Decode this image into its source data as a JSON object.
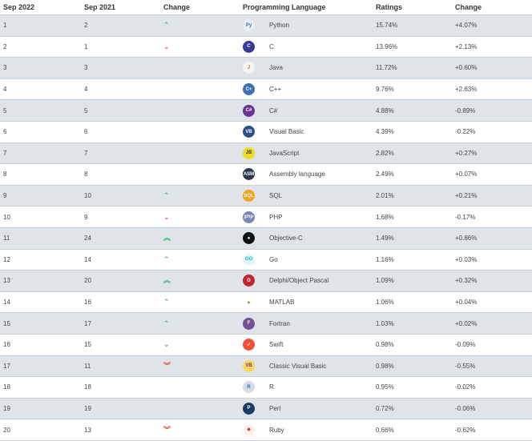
{
  "headers": {
    "sep2022": "Sep 2022",
    "sep2021": "Sep 2021",
    "change": "Change",
    "language": "Programming Language",
    "ratings": "Ratings",
    "change_pct": "Change"
  },
  "rows": [
    {
      "sep2022": "1",
      "sep2021": "2",
      "trend": "up",
      "logo": {
        "icon": "python-icon",
        "glyph": "Py",
        "bg": "#e9eef5",
        "fg": "#3572a5"
      },
      "language": "Python",
      "rating": "15.74%",
      "change": "+4.07%"
    },
    {
      "sep2022": "2",
      "sep2021": "1",
      "trend": "down",
      "logo": {
        "icon": "c-icon",
        "glyph": "C",
        "bg": "#39399a",
        "fg": "#ffffff"
      },
      "language": "C",
      "rating": "13.96%",
      "change": "+2.13%"
    },
    {
      "sep2022": "3",
      "sep2021": "3",
      "trend": "",
      "logo": {
        "icon": "java-icon",
        "glyph": "J",
        "bg": "#f4f4f4",
        "fg": "#e76f00"
      },
      "language": "Java",
      "rating": "11.72%",
      "change": "+0.60%"
    },
    {
      "sep2022": "4",
      "sep2021": "4",
      "trend": "",
      "logo": {
        "icon": "cpp-icon",
        "glyph": "C+",
        "bg": "#3f6fb5",
        "fg": "#ffffff"
      },
      "language": "C++",
      "rating": "9.76%",
      "change": "+2.63%"
    },
    {
      "sep2022": "5",
      "sep2021": "5",
      "trend": "",
      "logo": {
        "icon": "csharp-icon",
        "glyph": "C#",
        "bg": "#6a2f93",
        "fg": "#ffffff"
      },
      "language": "C#",
      "rating": "4.88%",
      "change": "-0.89%"
    },
    {
      "sep2022": "6",
      "sep2021": "6",
      "trend": "",
      "logo": {
        "icon": "visual-basic-icon",
        "glyph": "VB",
        "bg": "#2c4f8a",
        "fg": "#ffffff"
      },
      "language": "Visual Basic",
      "rating": "4.39%",
      "change": "-0.22%"
    },
    {
      "sep2022": "7",
      "sep2021": "7",
      "trend": "",
      "logo": {
        "icon": "javascript-icon",
        "glyph": "JS",
        "bg": "#f0db1f",
        "fg": "#222222"
      },
      "language": "JavaScript",
      "rating": "2.82%",
      "change": "+0.27%"
    },
    {
      "sep2022": "8",
      "sep2021": "8",
      "trend": "",
      "logo": {
        "icon": "assembly-icon",
        "glyph": "ASM",
        "bg": "#2b3a4a",
        "fg": "#ffffff"
      },
      "language": "Assembly language",
      "rating": "2.49%",
      "change": "+0.07%"
    },
    {
      "sep2022": "9",
      "sep2021": "10",
      "trend": "up",
      "logo": {
        "icon": "sql-icon",
        "glyph": "SQL",
        "bg": "#f2a31b",
        "fg": "#ffffff"
      },
      "language": "SQL",
      "rating": "2.01%",
      "change": "+0.21%"
    },
    {
      "sep2022": "10",
      "sep2021": "9",
      "trend": "down",
      "logo": {
        "icon": "php-icon",
        "glyph": "php",
        "bg": "#7a86b8",
        "fg": "#ffffff"
      },
      "language": "PHP",
      "rating": "1.68%",
      "change": "-0.17%"
    },
    {
      "sep2022": "11",
      "sep2021": "24",
      "trend": "double-up",
      "logo": {
        "icon": "apple-icon",
        "glyph": "●",
        "bg": "#111111",
        "fg": "#ffffff"
      },
      "language": "Objective-C",
      "rating": "1.49%",
      "change": "+0.86%"
    },
    {
      "sep2022": "12",
      "sep2021": "14",
      "trend": "up",
      "logo": {
        "icon": "go-icon",
        "glyph": "GO",
        "bg": "#e7f6fb",
        "fg": "#00add8"
      },
      "language": "Go",
      "rating": "1.16%",
      "change": "+0.03%"
    },
    {
      "sep2022": "13",
      "sep2021": "20",
      "trend": "double-up",
      "logo": {
        "icon": "delphi-icon",
        "glyph": "D",
        "bg": "#c1262d",
        "fg": "#ffffff"
      },
      "language": "Delphi/Object Pascal",
      "rating": "1.09%",
      "change": "+0.32%"
    },
    {
      "sep2022": "14",
      "sep2021": "16",
      "trend": "up",
      "logo": {
        "icon": "matlab-icon",
        "glyph": "▲",
        "bg": "#ffffff",
        "fg": "#e16737"
      },
      "language": "MATLAB",
      "rating": "1.06%",
      "change": "+0.04%"
    },
    {
      "sep2022": "15",
      "sep2021": "17",
      "trend": "up",
      "logo": {
        "icon": "fortran-icon",
        "glyph": "F",
        "bg": "#734f96",
        "fg": "#ffffff"
      },
      "language": "Fortran",
      "rating": "1.03%",
      "change": "+0.02%"
    },
    {
      "sep2022": "16",
      "sep2021": "15",
      "trend": "down",
      "logo": {
        "icon": "swift-icon",
        "glyph": "➶",
        "bg": "#f05138",
        "fg": "#ffffff"
      },
      "language": "Swift",
      "rating": "0.98%",
      "change": "-0.09%"
    },
    {
      "sep2022": "17",
      "sep2021": "11",
      "trend": "double-down",
      "logo": {
        "icon": "classic-visual-basic-icon",
        "glyph": "VB",
        "bg": "#ffd75e",
        "fg": "#5a3a8a"
      },
      "language": "Classic Visual Basic",
      "rating": "0.98%",
      "change": "-0.55%"
    },
    {
      "sep2022": "18",
      "sep2021": "18",
      "trend": "",
      "logo": {
        "icon": "r-icon",
        "glyph": "R",
        "bg": "#d6dce4",
        "fg": "#276dc3"
      },
      "language": "R",
      "rating": "0.95%",
      "change": "-0.02%"
    },
    {
      "sep2022": "19",
      "sep2021": "19",
      "trend": "",
      "logo": {
        "icon": "perl-icon",
        "glyph": "P",
        "bg": "#1b3c66",
        "fg": "#ffffff"
      },
      "language": "Perl",
      "rating": "0.72%",
      "change": "-0.06%"
    },
    {
      "sep2022": "20",
      "sep2021": "13",
      "trend": "double-down",
      "logo": {
        "icon": "ruby-icon",
        "glyph": "◆",
        "bg": "#fdf0ee",
        "fg": "#cc342d"
      },
      "language": "Ruby",
      "rating": "0.66%",
      "change": "-0.62%"
    }
  ],
  "trend_glyphs": {
    "up": "⌃",
    "down": "⌄",
    "double-up": "︽",
    "double-down": "︾"
  }
}
